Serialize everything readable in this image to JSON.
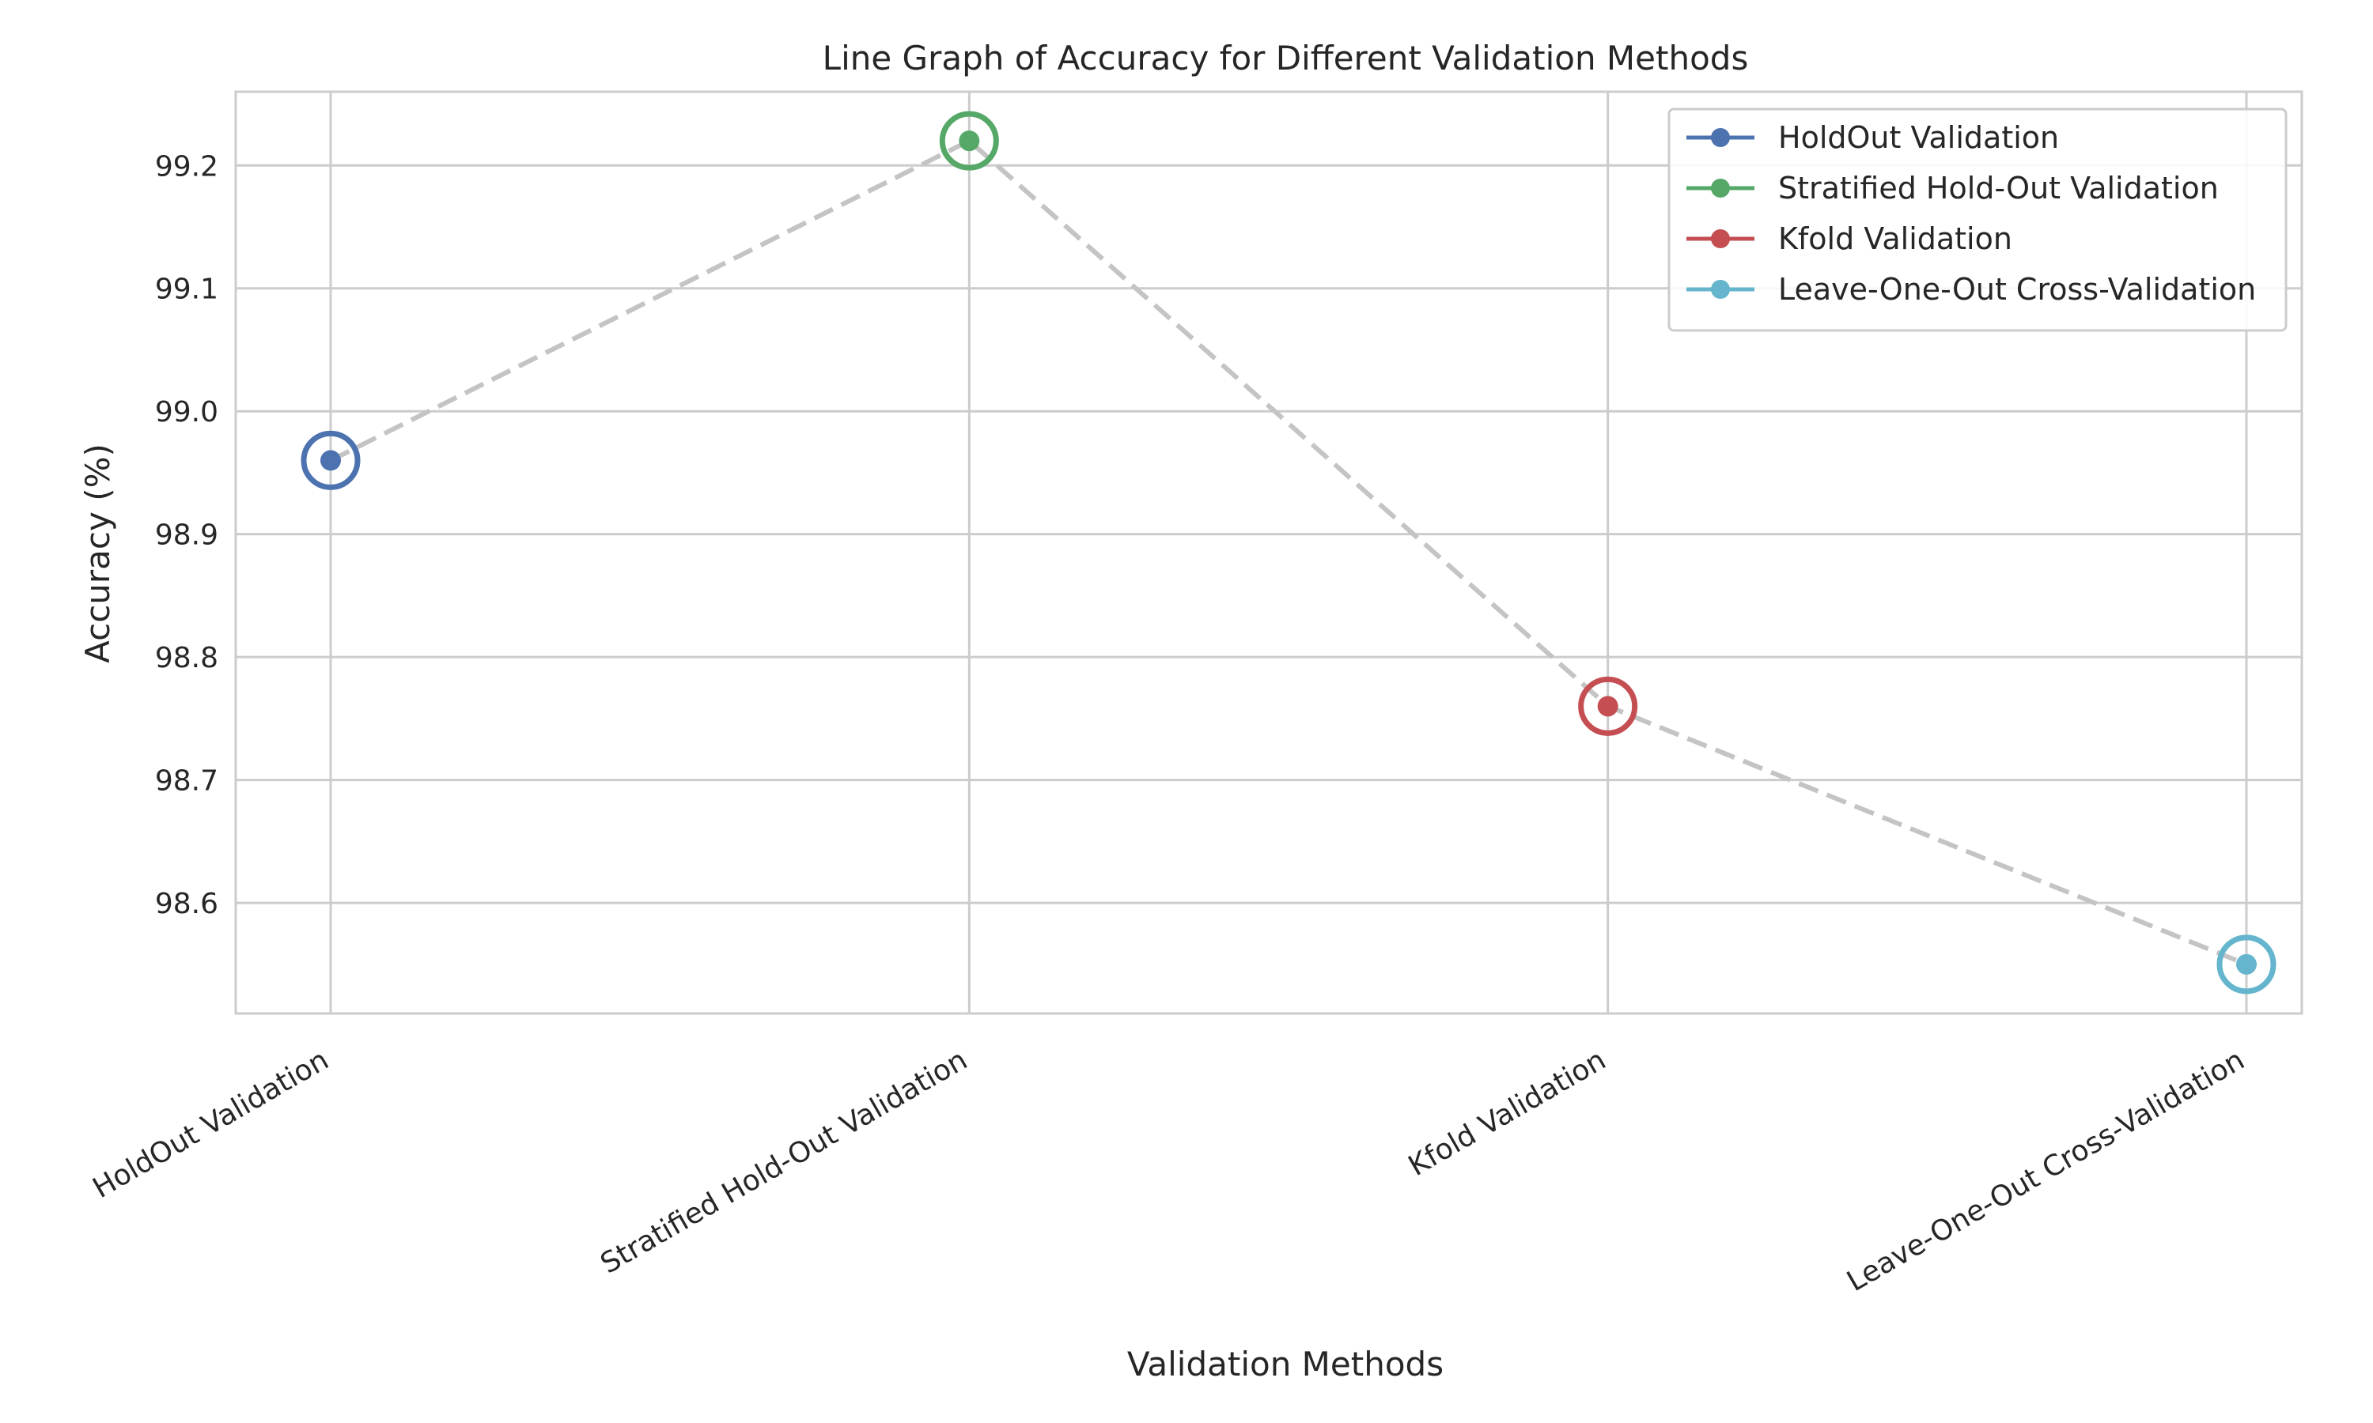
{
  "chart_data": {
    "type": "line",
    "title": "Line Graph of Accuracy for Different Validation Methods",
    "xlabel": "Validation Methods",
    "ylabel": "Accuracy (%)",
    "categories": [
      "HoldOut Validation",
      "Stratified Hold-Out Validation",
      "Kfold Validation",
      "Leave-One-Out Cross-Validation"
    ],
    "values": [
      98.96,
      99.22,
      98.76,
      98.55
    ],
    "ylim": [
      98.51,
      99.26
    ],
    "yticks": [
      "98.6",
      "98.7",
      "98.8",
      "98.9",
      "99.0",
      "99.1",
      "99.2"
    ],
    "connector_color": "#c4c4c4",
    "grid": true,
    "legend_position": "top-right",
    "series": [
      {
        "name": "HoldOut Validation",
        "color": "#4c72b0"
      },
      {
        "name": "Stratified Hold-Out Validation",
        "color": "#55a868"
      },
      {
        "name": "Kfold Validation",
        "color": "#c44e52"
      },
      {
        "name": "Leave-One-Out Cross-Validation",
        "color": "#64b5cd"
      }
    ]
  }
}
